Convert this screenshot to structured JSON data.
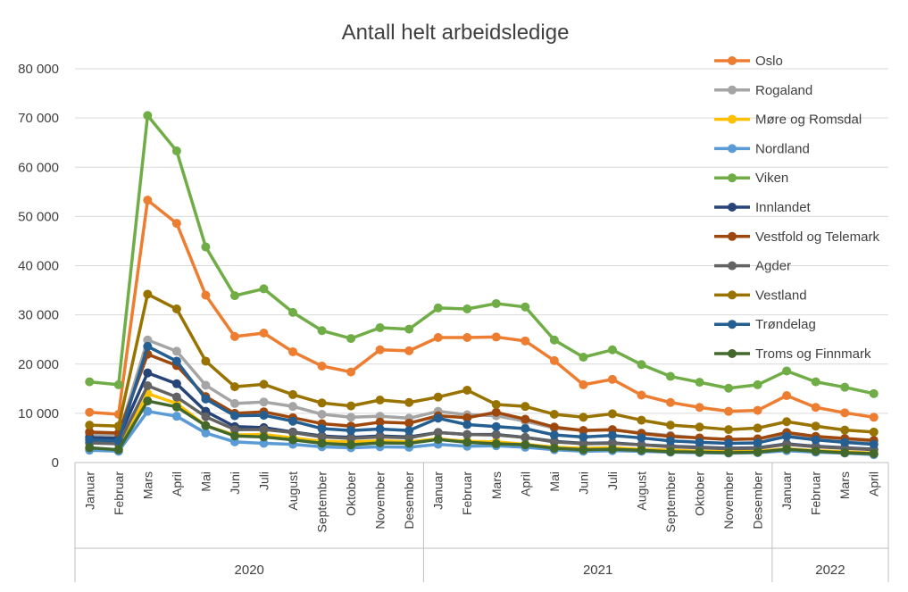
{
  "chart_data": {
    "type": "line",
    "title": "Antall helt arbeidsledige",
    "xlabel": "",
    "ylabel": "",
    "ylim": [
      0,
      80000
    ],
    "y_ticks": [
      0,
      10000,
      20000,
      30000,
      40000,
      50000,
      60000,
      70000,
      80000
    ],
    "y_tick_labels": [
      "0",
      "10 000",
      "20 000",
      "30 000",
      "40 000",
      "50 000",
      "60 000",
      "70 000",
      "80 000"
    ],
    "grid": true,
    "legend_position": "right",
    "categories": [
      "Januar",
      "Februar",
      "Mars",
      "April",
      "Mai",
      "Juni",
      "Juli",
      "August",
      "September",
      "Oktober",
      "November",
      "Desember",
      "Januar",
      "Februar",
      "Mars",
      "April",
      "Mai",
      "Juni",
      "Juli",
      "August",
      "September",
      "Oktober",
      "November",
      "Desember",
      "Januar",
      "Februar",
      "Mars",
      "April"
    ],
    "years": [
      {
        "label": "2020",
        "start": 0,
        "count": 12
      },
      {
        "label": "2021",
        "start": 12,
        "count": 12
      },
      {
        "label": "2022",
        "start": 24,
        "count": 4
      }
    ],
    "series": [
      {
        "name": "Oslo",
        "color": "#ED7D31",
        "values": [
          10200,
          9800,
          53300,
          48600,
          34000,
          25600,
          26300,
          22500,
          19600,
          18400,
          22900,
          22700,
          25400,
          25400,
          25500,
          24700,
          20700,
          15800,
          16900,
          13700,
          12200,
          11200,
          10400,
          10600,
          13600,
          11200,
          10100,
          9200
        ]
      },
      {
        "name": "Rogaland",
        "color": "#A5A5A5",
        "values": [
          5800,
          5500,
          24900,
          22600,
          15700,
          12000,
          12300,
          11400,
          9800,
          9200,
          9400,
          9000,
          10400,
          9700,
          9500,
          8400,
          7000,
          6500,
          6600,
          6000,
          5500,
          5000,
          4700,
          4800,
          5800,
          5000,
          4500,
          4000
        ]
      },
      {
        "name": "Møre og Romsdal",
        "color": "#FFC000",
        "values": [
          2800,
          2600,
          14000,
          12000,
          7500,
          5600,
          5700,
          5000,
          4300,
          4200,
          4400,
          4200,
          4800,
          4300,
          4200,
          3700,
          3100,
          2900,
          3000,
          2700,
          2500,
          2300,
          2200,
          2300,
          2800,
          2400,
          2200,
          1900
        ]
      },
      {
        "name": "Nordland",
        "color": "#5B9BD5",
        "values": [
          2500,
          2300,
          10400,
          9400,
          6000,
          4200,
          3900,
          3700,
          3200,
          3000,
          3200,
          3100,
          3700,
          3300,
          3400,
          3100,
          2600,
          2300,
          2400,
          2300,
          2100,
          2000,
          1900,
          2000,
          2400,
          2100,
          1900,
          1600
        ]
      },
      {
        "name": "Viken",
        "color": "#70AD47",
        "values": [
          16400,
          15800,
          70500,
          63300,
          43800,
          33900,
          35300,
          30500,
          26800,
          25200,
          27400,
          27100,
          31400,
          31200,
          32300,
          31600,
          24900,
          21400,
          22900,
          19900,
          17500,
          16300,
          15100,
          15800,
          18600,
          16400,
          15300,
          14000
        ]
      },
      {
        "name": "Innlandet",
        "color": "#264478",
        "values": [
          5100,
          4900,
          18200,
          16000,
          10400,
          7300,
          7100,
          6200,
          5400,
          5100,
          5400,
          5200,
          6100,
          5700,
          5700,
          5100,
          4300,
          3900,
          4000,
          3600,
          3300,
          3100,
          2900,
          3000,
          3800,
          3300,
          3000,
          2700
        ]
      },
      {
        "name": "Vestfold og Telemark",
        "color": "#9E480E",
        "values": [
          6200,
          6000,
          22000,
          19700,
          13400,
          10000,
          10300,
          9100,
          7900,
          7400,
          8200,
          8000,
          9500,
          9100,
          10200,
          8800,
          7200,
          6500,
          6700,
          5900,
          5300,
          5000,
          4700,
          4800,
          6100,
          5300,
          4900,
          4500
        ]
      },
      {
        "name": "Agder",
        "color": "#636363",
        "values": [
          4000,
          3800,
          15600,
          13300,
          9300,
          6700,
          6700,
          6100,
          5200,
          4900,
          5200,
          5000,
          6100,
          5700,
          5600,
          5100,
          4200,
          3800,
          3900,
          3600,
          3200,
          3000,
          2800,
          2900,
          3700,
          3200,
          2900,
          2600
        ]
      },
      {
        "name": "Vestland",
        "color": "#997300",
        "values": [
          7600,
          7400,
          34200,
          31200,
          20600,
          15400,
          15900,
          13800,
          12100,
          11500,
          12700,
          12200,
          13300,
          14700,
          11800,
          11400,
          9800,
          9200,
          9900,
          8600,
          7600,
          7200,
          6700,
          7000,
          8300,
          7400,
          6600,
          6200
        ]
      },
      {
        "name": "Trøndelag",
        "color": "#255E91",
        "values": [
          4600,
          4400,
          23600,
          20600,
          12900,
          9500,
          9600,
          8400,
          6900,
          6500,
          6800,
          6500,
          9000,
          7700,
          7300,
          6900,
          5600,
          5200,
          5500,
          5000,
          4400,
          4100,
          3900,
          4000,
          5300,
          4600,
          4100,
          3700
        ]
      },
      {
        "name": "Troms og Finnmark",
        "color": "#43682B",
        "values": [
          3000,
          2600,
          12500,
          11300,
          7500,
          5400,
          5200,
          4600,
          3900,
          3600,
          4000,
          3900,
          4700,
          4100,
          3800,
          3600,
          2900,
          2600,
          2700,
          2500,
          2200,
          2100,
          2000,
          2100,
          2700,
          2300,
          2000,
          1800
        ]
      }
    ]
  }
}
